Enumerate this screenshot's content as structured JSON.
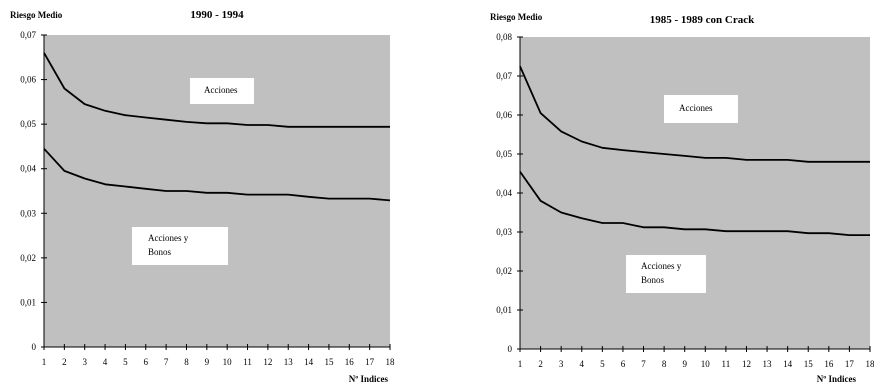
{
  "chart_data": [
    {
      "type": "line",
      "title": "1990 - 1994",
      "ylabel": "Riesgo Medio",
      "xlabel": "Nº Indices",
      "x": [
        1,
        2,
        3,
        4,
        5,
        6,
        7,
        8,
        9,
        10,
        11,
        12,
        13,
        14,
        15,
        16,
        17,
        18
      ],
      "ylim": [
        0,
        0.07
      ],
      "yticks": [
        "0",
        "0,01",
        "0,02",
        "0,03",
        "0,04",
        "0,05",
        "0,06",
        "0,07"
      ],
      "grid": false,
      "background": "#c0c0c0",
      "line_color": "#000000",
      "series": [
        {
          "values": [
            0.066,
            0.058,
            0.0545,
            0.053,
            0.052,
            0.0515,
            0.051,
            0.0505,
            0.0502,
            0.0502,
            0.0498,
            0.0498,
            0.0494,
            0.0494,
            0.0494,
            0.0494,
            0.0494,
            0.0494
          ]
        },
        {
          "values": [
            0.0445,
            0.0395,
            0.0378,
            0.0365,
            0.036,
            0.0355,
            0.035,
            0.035,
            0.0346,
            0.0346,
            0.0342,
            0.0342,
            0.0342,
            0.0337,
            0.0333,
            0.0333,
            0.0333,
            0.0329
          ]
        }
      ],
      "annotations": [
        {
          "lines": [
            "Acciones"
          ]
        },
        {
          "lines": [
            "Acciones y",
            "Bonos"
          ]
        }
      ]
    },
    {
      "type": "line",
      "title": "1985 - 1989 con Crack",
      "ylabel": "Riesgo Medio",
      "xlabel": "Nº Indices",
      "x": [
        1,
        2,
        3,
        4,
        5,
        6,
        7,
        8,
        9,
        10,
        11,
        12,
        13,
        14,
        15,
        16,
        17,
        18
      ],
      "ylim": [
        0,
        0.08
      ],
      "yticks": [
        "0",
        "0,01",
        "0,02",
        "0,03",
        "0,04",
        "0,05",
        "0,06",
        "0,07",
        "0,08"
      ],
      "grid": false,
      "background": "#c0c0c0",
      "line_color": "#000000",
      "series": [
        {
          "values": [
            0.0725,
            0.0605,
            0.0558,
            0.0532,
            0.0516,
            0.051,
            0.0505,
            0.05,
            0.0495,
            0.049,
            0.049,
            0.0485,
            0.0485,
            0.0485,
            0.048,
            0.048,
            0.048,
            0.048
          ]
        },
        {
          "values": [
            0.0455,
            0.038,
            0.035,
            0.0335,
            0.0323,
            0.0323,
            0.0312,
            0.0312,
            0.0307,
            0.0307,
            0.0302,
            0.0302,
            0.0302,
            0.0302,
            0.0297,
            0.0297,
            0.0292,
            0.0292
          ]
        }
      ],
      "annotations": [
        {
          "lines": [
            "Acciones"
          ]
        },
        {
          "lines": [
            "Acciones y",
            "Bonos"
          ]
        }
      ]
    }
  ]
}
